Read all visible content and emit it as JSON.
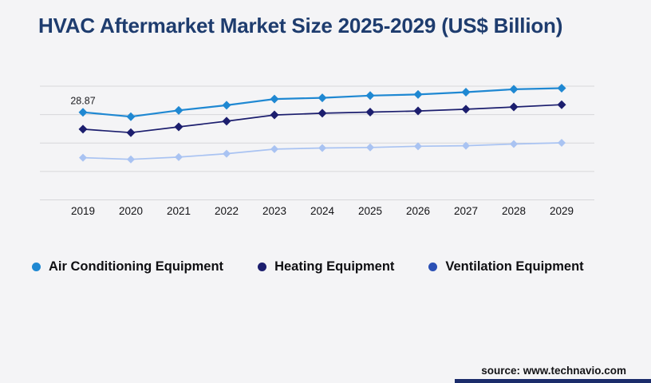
{
  "title": "HVAC Aftermarket Market Size 2025-2029 (US$ Billion)",
  "source_text": "source: www.technavio.com",
  "colors": {
    "background": "#f4f4f6",
    "title": "#1e3c6e",
    "gridline": "#d7d7da",
    "air_conditioning": "#1f88d2",
    "heating": "#1c1e6e",
    "ventilation_line": "#a9c3f2",
    "ventilation_legend_dot": "#2b50b5",
    "footer_bar": "#1b2c6b",
    "axis_label": "#131316"
  },
  "legend": {
    "items": [
      {
        "label": "Air Conditioning Equipment",
        "color": "#1f88d2"
      },
      {
        "label": "Heating Equipment",
        "color": "#1c1e6e"
      },
      {
        "label": "Ventilation Equipment",
        "color": "#2b50b5"
      }
    ]
  },
  "chart_data": {
    "type": "line",
    "title": "HVAC Aftermarket Market Size 2025-2029 (US$ Billion)",
    "categories": [
      "2019",
      "2020",
      "2021",
      "2022",
      "2023",
      "2024",
      "2025",
      "2026",
      "2027",
      "2028",
      "2029"
    ],
    "series": [
      {
        "name": "Air Conditioning Equipment",
        "color": "#1f88d2",
        "marker": "diamond",
        "values": [
          28.87,
          28.1,
          29.2,
          30.1,
          31.2,
          31.4,
          31.8,
          32.0,
          32.4,
          32.9,
          33.1
        ]
      },
      {
        "name": "Heating Equipment",
        "color": "#1c1e6e",
        "marker": "diamond",
        "values": [
          25.9,
          25.3,
          26.3,
          27.3,
          28.4,
          28.7,
          28.9,
          29.1,
          29.4,
          29.8,
          30.2
        ]
      },
      {
        "name": "Ventilation Equipment",
        "color": "#a9c3f2",
        "legend_color": "#2b50b5",
        "marker": "diamond",
        "values": [
          20.9,
          20.6,
          21.0,
          21.6,
          22.4,
          22.6,
          22.7,
          22.9,
          23.0,
          23.3,
          23.5
        ]
      }
    ],
    "data_labels": [
      {
        "series_index": 0,
        "point_index": 0,
        "text": "28.87"
      }
    ],
    "grid": true,
    "y_axis_labels_visible": false,
    "legend_position": "bottom",
    "xlabel": "",
    "ylabel": ""
  }
}
